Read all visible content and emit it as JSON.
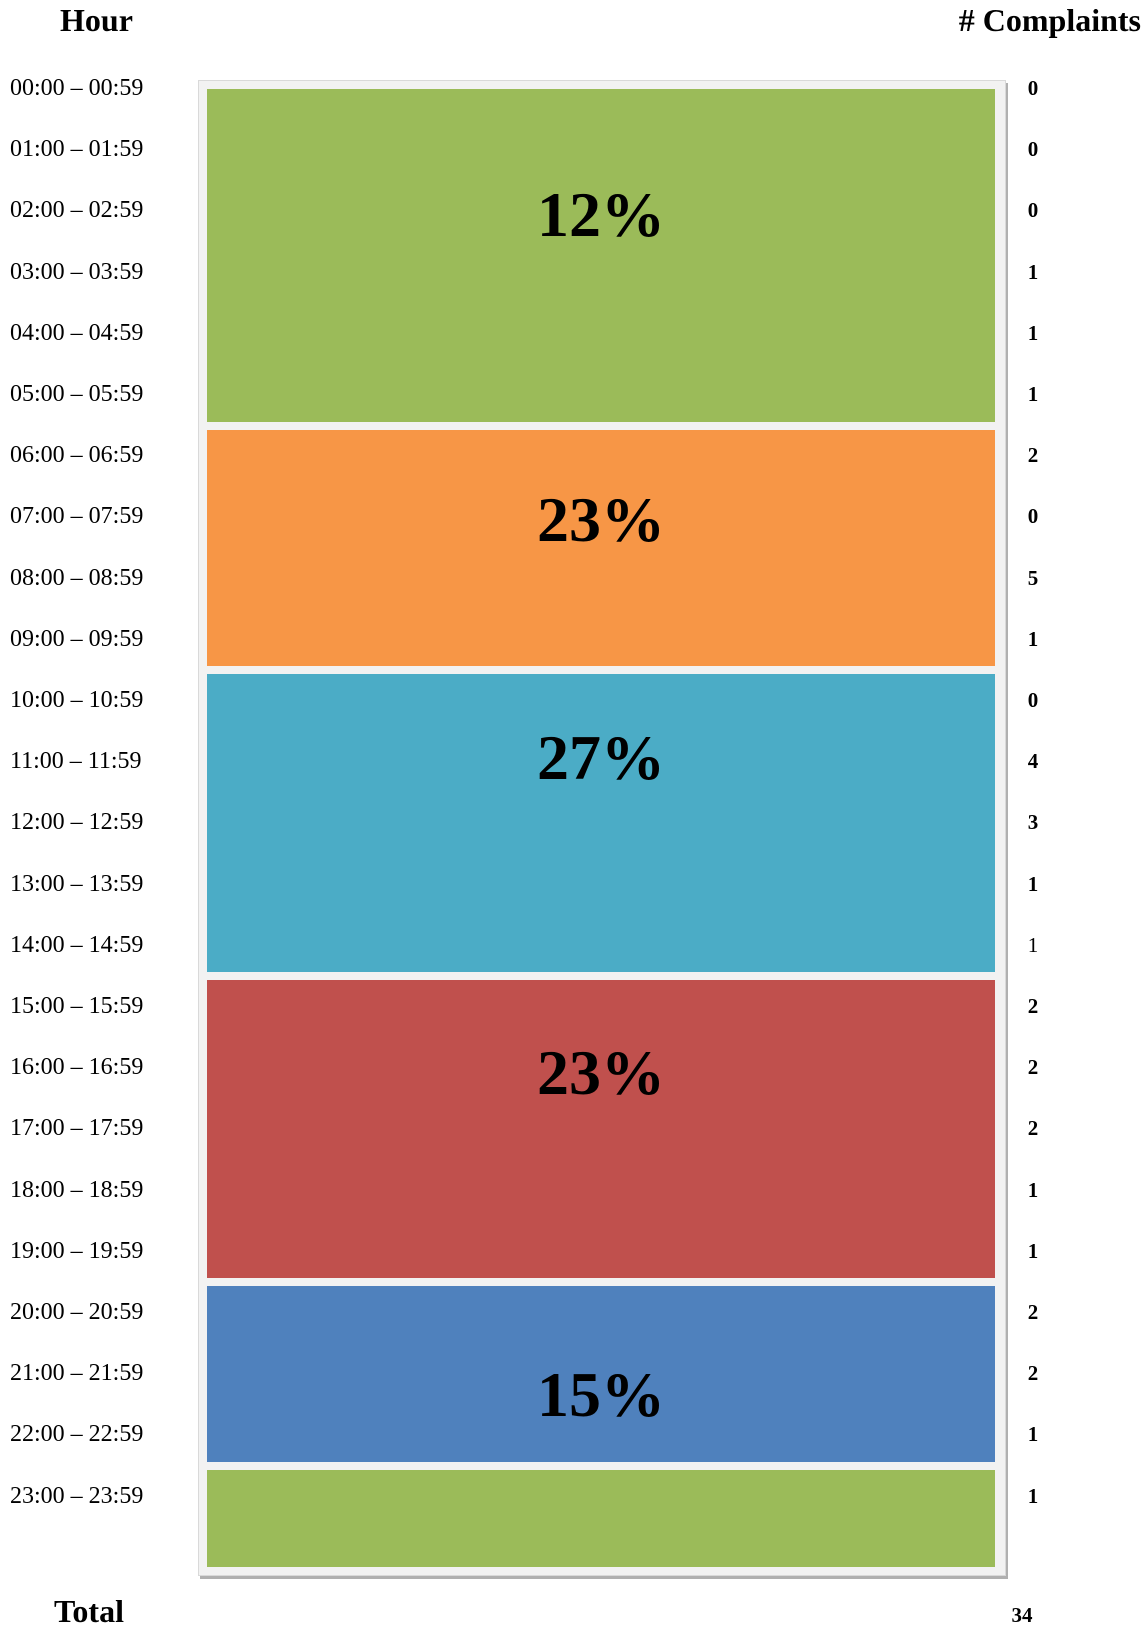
{
  "header": {
    "hour_label": "Hour",
    "count_label": "# Complaints"
  },
  "total": {
    "label": "Total",
    "value": "34"
  },
  "chart_data": {
    "type": "bar",
    "categories": [
      "00:00 – 00:59",
      "01:00 – 01:59",
      "02:00 – 02:59",
      "03:00 – 03:59",
      "04:00 – 04:59",
      "05:00 – 05:59",
      "06:00 – 06:59",
      "07:00 – 07:59",
      "08:00 – 08:59",
      "09:00 – 09:59",
      "10:00 – 10:59",
      "11:00 – 11:59",
      "12:00 – 12:59",
      "13:00 – 13:59",
      "14:00 – 14:59",
      "15:00 – 15:59",
      "16:00 – 16:59",
      "17:00 – 17:59",
      "18:00 – 18:59",
      "19:00 – 19:59",
      "20:00 – 20:59",
      "21:00 – 21:59",
      "22:00 – 22:59",
      "23:00 – 23:59"
    ],
    "values": [
      0,
      0,
      0,
      1,
      1,
      1,
      2,
      0,
      5,
      1,
      0,
      4,
      3,
      1,
      1,
      2,
      2,
      2,
      1,
      1,
      2,
      2,
      1,
      1
    ],
    "bands": [
      {
        "start_index": 0,
        "end_index": 5,
        "percent_label": "12%",
        "color": "#9bbb59"
      },
      {
        "start_index": 6,
        "end_index": 9,
        "percent_label": "23%",
        "color": "#f79646"
      },
      {
        "start_index": 10,
        "end_index": 14,
        "percent_label": "27%",
        "color": "#4bacc6"
      },
      {
        "start_index": 15,
        "end_index": 19,
        "percent_label": "23%",
        "color": "#c0504d"
      },
      {
        "start_index": 20,
        "end_index": 22,
        "percent_label": "15%",
        "color": "#4f81bd"
      },
      {
        "start_index": 23,
        "end_index": 23,
        "percent_label": "",
        "color": "#9bbb59"
      }
    ]
  }
}
